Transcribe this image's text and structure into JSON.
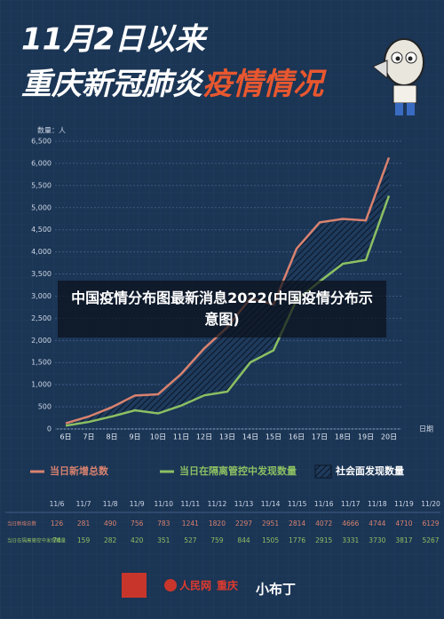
{
  "chart_data": {
    "type": "line",
    "title_line1": "11月2日以来",
    "title_line2_white": "重庆新冠肺炎",
    "title_line2_red": "疫情情况",
    "y_label": "数量：人",
    "x_label": "日期",
    "categories": [
      "6日",
      "7日",
      "8日",
      "9日",
      "10日",
      "11日",
      "12日",
      "13日",
      "14日",
      "15日",
      "16日",
      "17日",
      "18日",
      "19日",
      "20日"
    ],
    "series": [
      {
        "name": "当日新增总数",
        "color": "#d9826f",
        "values": [
          126,
          281,
          490,
          756,
          783,
          1241,
          1820,
          2297,
          2951,
          2814,
          4072,
          4666,
          4744,
          4710,
          6129
        ]
      },
      {
        "name": "当日在隔离管控中发现数量",
        "color": "#8cc063",
        "values": [
          74,
          159,
          282,
          420,
          351,
          527,
          759,
          844,
          1505,
          1776,
          2915,
          3331,
          3730,
          3817,
          5267
        ]
      }
    ],
    "band": {
      "name": "社会面发现数量",
      "color": "#1e3a5c"
    },
    "ylim": [
      0,
      6500
    ],
    "yticks": [
      0,
      500,
      {
        "value": 1000,
        "label": "1,000"
      },
      {
        "value": 1500,
        "label": "1,500"
      },
      {
        "value": 2000,
        "label": "2,000"
      },
      {
        "value": 2500,
        "label": "2,500"
      },
      {
        "value": 3000,
        "label": "3,000"
      },
      {
        "value": 3500,
        "label": "3,500"
      },
      {
        "value": 4000,
        "label": "4,000"
      },
      {
        "value": 4500,
        "label": "4,500"
      },
      {
        "value": 5000,
        "label": "5,000"
      },
      {
        "value": 5500,
        "label": "5,500"
      },
      {
        "value": 6000,
        "label": "6,000"
      },
      {
        "value": 6500,
        "label": "6,500"
      }
    ],
    "grid": true,
    "table_dates": [
      "11/6",
      "11/7",
      "11/8",
      "11/9",
      "11/10",
      "11/11",
      "11/12",
      "11/13",
      "11/14",
      "11/15",
      "11/16",
      "11/17",
      "11/18",
      "11/19",
      "11/20"
    ],
    "overlay": "中国疫情分布图最新消息2022(中国疫情分布示意图)",
    "footer": [
      "人民网",
      "重庆",
      "小布丁"
    ]
  }
}
